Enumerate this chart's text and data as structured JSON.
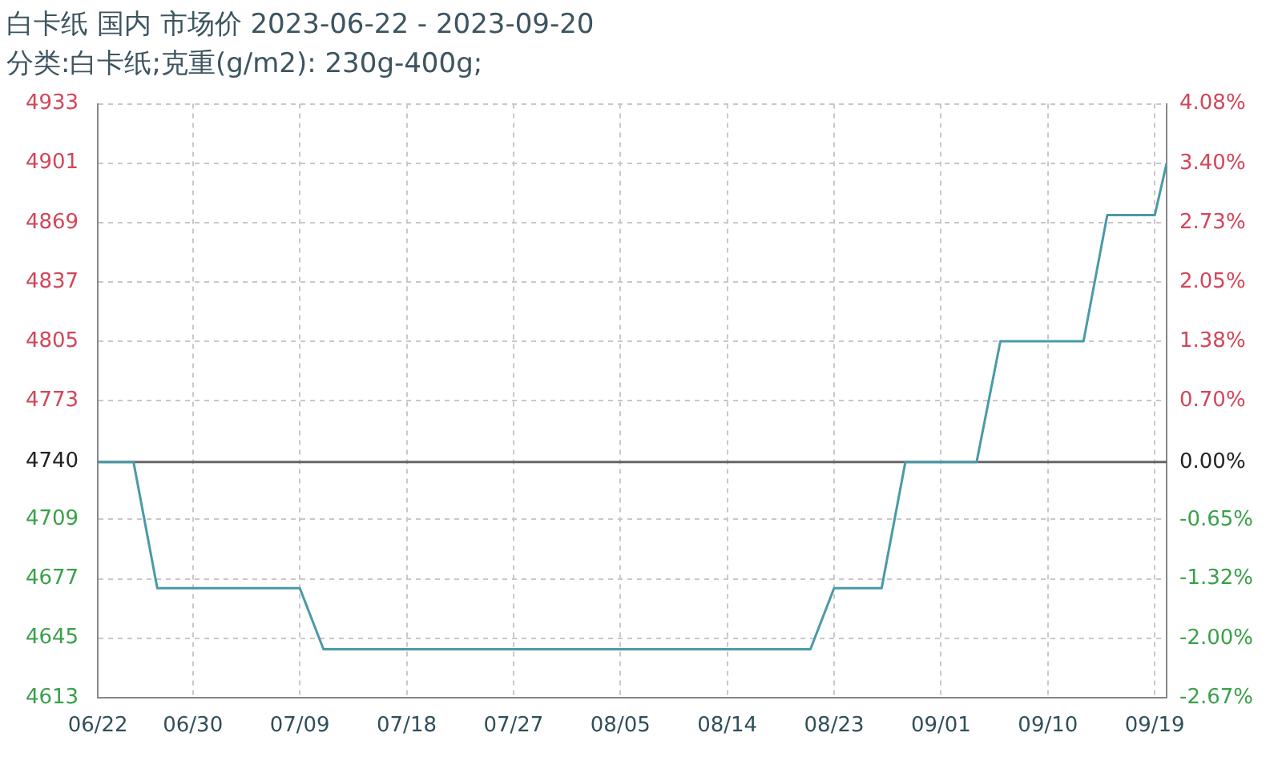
{
  "chart_data": {
    "type": "line",
    "title": "白卡纸 国内 市场价 2023-06-22 - 2023-09-20",
    "subtitle": "分类:白卡纸;克重(g/m2): 230g-400g;",
    "x": [
      "2023-06-22",
      "2023-06-25",
      "2023-06-27",
      "2023-07-09",
      "2023-07-11",
      "2023-08-21",
      "2023-08-23",
      "2023-08-27",
      "2023-08-29",
      "2023-09-04",
      "2023-09-06",
      "2023-09-13",
      "2023-09-15",
      "2023-09-19",
      "2023-09-20"
    ],
    "series": [
      {
        "color": "#4a9aa8",
        "values": [
          4740,
          4740,
          4672,
          4672,
          4639,
          4639,
          4672,
          4672,
          4740,
          4740,
          4805,
          4805,
          4873,
          4873,
          4901
        ]
      }
    ],
    "xlim": [
      "2023-06-22",
      "2023-09-20"
    ],
    "xticks": [
      {
        "value": "2023-06-22",
        "label": "06/22"
      },
      {
        "value": "2023-06-30",
        "label": "06/30"
      },
      {
        "value": "2023-07-09",
        "label": "07/09"
      },
      {
        "value": "2023-07-18",
        "label": "07/18"
      },
      {
        "value": "2023-07-27",
        "label": "07/27"
      },
      {
        "value": "2023-08-05",
        "label": "08/05"
      },
      {
        "value": "2023-08-14",
        "label": "08/14"
      },
      {
        "value": "2023-08-23",
        "label": "08/23"
      },
      {
        "value": "2023-09-01",
        "label": "09/01"
      },
      {
        "value": "2023-09-10",
        "label": "09/10"
      },
      {
        "value": "2023-09-19",
        "label": "09/19"
      }
    ],
    "ylim": [
      4613,
      4933
    ],
    "yticks": [
      4613,
      4645,
      4677,
      4709,
      4740,
      4773,
      4805,
      4837,
      4869,
      4901,
      4933
    ],
    "y2lim": [
      -2.67,
      4.08
    ],
    "y2ticks": [
      {
        "value": -2.67,
        "label": "-2.67%"
      },
      {
        "value": -2,
        "label": "-2.00%"
      },
      {
        "value": -1.32,
        "label": "-1.32%"
      },
      {
        "value": -0.65,
        "label": "-0.65%"
      },
      {
        "value": 0,
        "label": "0.00%"
      },
      {
        "value": 0.7,
        "label": "0.70%"
      },
      {
        "value": 1.38,
        "label": "1.38%"
      },
      {
        "value": 2.05,
        "label": "2.05%"
      },
      {
        "value": 2.73,
        "label": "2.73%"
      },
      {
        "value": 3.4,
        "label": "3.40%"
      },
      {
        "value": 4.08,
        "label": "4.08%"
      }
    ],
    "ref_lines": [
      {
        "axis": "y",
        "value": 4740,
        "color": "#666666"
      }
    ],
    "grid": true,
    "legend": false,
    "marker": "none",
    "line_style": "solid"
  }
}
